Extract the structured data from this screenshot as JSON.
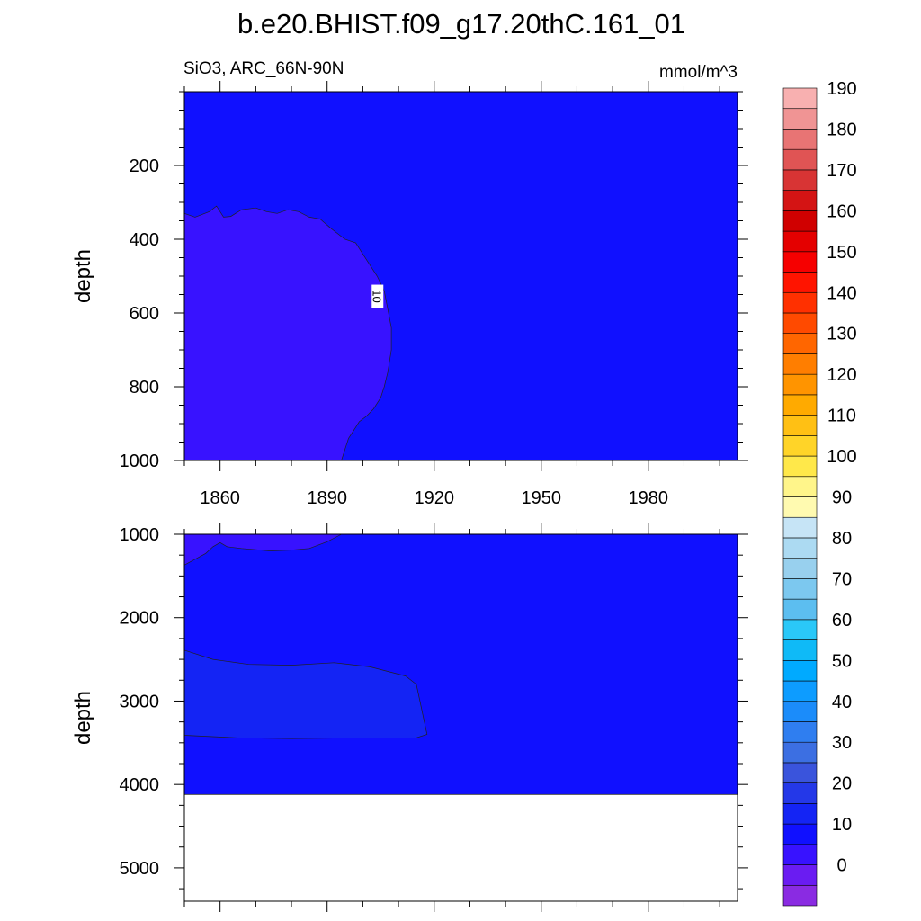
{
  "chart_data": {
    "type": "heatmap",
    "title": "b.e20.BHIST.f09_g17.20thC.161_01",
    "subtitle_left": "SiO3, ARC_66N-90N",
    "subtitle_right": "mmol/m^3",
    "xlim": [
      1850,
      2005
    ],
    "x_ticks": [
      1860,
      1890,
      1920,
      1950,
      1980
    ],
    "x_tick_labels": [
      "1860",
      "1890",
      "1920",
      "1950",
      "1980"
    ],
    "panels": [
      {
        "name": "upper",
        "ylabel": "depth",
        "ylim": [
          0,
          1000
        ],
        "y_ticks": [
          200,
          400,
          600,
          800,
          1000
        ],
        "y_tick_labels": [
          "200",
          "400",
          "600",
          "800",
          "1000"
        ],
        "background_level": "10-15",
        "regions": [
          {
            "level": "5-10",
            "description_years": [
              1850,
              1908
            ],
            "depth_range": [
              330,
              1000
            ]
          }
        ],
        "contour_labels": [
          {
            "text": "10",
            "x": 1904,
            "depth": 555
          }
        ]
      },
      {
        "name": "lower",
        "ylabel": "depth",
        "ylim": [
          1000,
          5400
        ],
        "y_ticks": [
          1000,
          2000,
          3000,
          4000,
          5000
        ],
        "y_tick_labels": [
          "1000",
          "2000",
          "3000",
          "4000",
          "5000"
        ],
        "background_level": "10-15",
        "max_depth": 4120,
        "regions": [
          {
            "level": "5-10",
            "description_years": [
              1850,
              1894
            ],
            "depth_range": [
              1000,
              1370
            ]
          },
          {
            "level": "15-20",
            "description_years": [
              1850,
              1917
            ],
            "depth_range": [
              2390,
              3440
            ]
          }
        ]
      }
    ],
    "colorbar": {
      "levels": [
        -5,
        0,
        5,
        10,
        15,
        20,
        25,
        30,
        35,
        40,
        45,
        50,
        55,
        60,
        65,
        70,
        75,
        80,
        85,
        90,
        95,
        100,
        105,
        110,
        115,
        120,
        125,
        130,
        135,
        140,
        145,
        150,
        155,
        160,
        165,
        170,
        175,
        180,
        185,
        190,
        195
      ],
      "labels": [
        "0",
        "10",
        "20",
        "30",
        "40",
        "50",
        "60",
        "70",
        "80",
        "90",
        "100",
        "110",
        "120",
        "130",
        "140",
        "150",
        "160",
        "170",
        "180",
        "190"
      ],
      "label_values": [
        0,
        10,
        20,
        30,
        40,
        50,
        60,
        70,
        80,
        90,
        100,
        110,
        120,
        130,
        140,
        150,
        160,
        170,
        180,
        190
      ],
      "colors": [
        "#8a2be2",
        "#6a1cf2",
        "#3812ff",
        "#1010ff",
        "#1424f4",
        "#2438e8",
        "#3a54dc",
        "#3c6fe2",
        "#2f7ef0",
        "#1b8cfa",
        "#0d9cff",
        "#00aaff",
        "#0fbaf7",
        "#2ac8f8",
        "#5cbef0",
        "#7cc8ef",
        "#98d0ee",
        "#acdaf2",
        "#c6e4f6",
        "#fffab0",
        "#fff58a",
        "#ffe84a",
        "#ffd428",
        "#ffc014",
        "#ffaa00",
        "#ff9400",
        "#ff7e00",
        "#ff6600",
        "#ff4a00",
        "#ff3000",
        "#ff1400",
        "#f60000",
        "#e40000",
        "#d00000",
        "#d41414",
        "#d83434",
        "#e05454",
        "#e87474",
        "#f09494",
        "#f8b0b0"
      ]
    }
  }
}
